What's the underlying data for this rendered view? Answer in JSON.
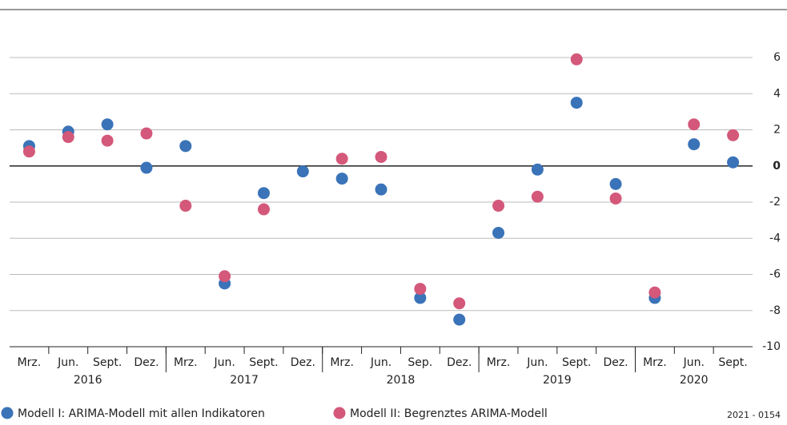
{
  "chart_data": {
    "type": "scatter",
    "categories": [
      "Mrz.",
      "Jun.",
      "Sept.",
      "Dez.",
      "Mrz.",
      "Jun.",
      "Sept.",
      "Dez.",
      "Mrz.",
      "Jun.",
      "Sep.",
      "Dez.",
      "Mrz.",
      "Jun.",
      "Sept.",
      "Dez.",
      "Mrz.",
      "Jun.",
      "Sept."
    ],
    "year_groups": [
      {
        "label": "2016",
        "count": 4
      },
      {
        "label": "2017",
        "count": 4
      },
      {
        "label": "2018",
        "count": 4
      },
      {
        "label": "2019",
        "count": 4
      },
      {
        "label": "2020",
        "count": 3
      }
    ],
    "series": [
      {
        "name": "Modell I: ARIMA-Modell mit allen Indikatoren",
        "color": "#3a73b8",
        "values": [
          1.1,
          1.9,
          2.3,
          -0.1,
          1.1,
          -6.5,
          -1.5,
          -0.3,
          -0.7,
          -1.3,
          -7.3,
          -8.5,
          -3.7,
          -0.2,
          3.5,
          -1.0,
          -7.3,
          1.2,
          0.2
        ]
      },
      {
        "name": "Modell II: Begrenztes ARIMA-Modell",
        "color": "#d4587a",
        "values": [
          0.8,
          1.6,
          1.4,
          1.8,
          -2.2,
          -6.1,
          -2.4,
          null,
          0.4,
          0.5,
          -6.8,
          -7.6,
          -2.2,
          -1.7,
          5.9,
          -1.8,
          -7.0,
          2.3,
          1.7
        ]
      }
    ],
    "ylim": [
      -10,
      6
    ],
    "yticks": [
      -10,
      -8,
      -6,
      -4,
      -2,
      0,
      2,
      4,
      6
    ],
    "grid": true,
    "note": "2021 - 0154"
  }
}
